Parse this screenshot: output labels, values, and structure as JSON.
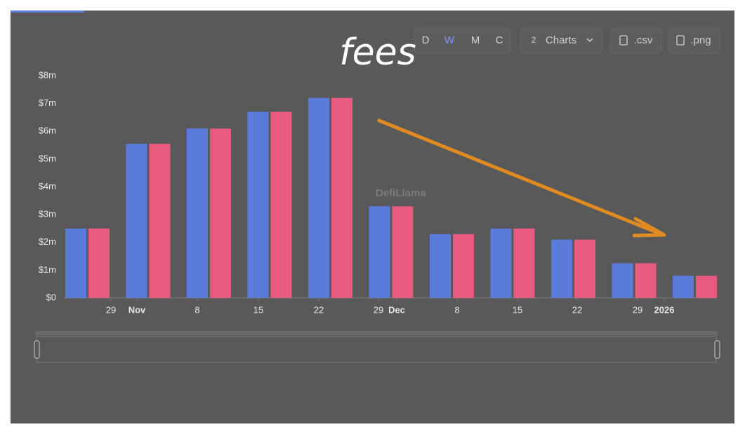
{
  "toolbar": {
    "intervals": [
      "D",
      "W",
      "M",
      "C"
    ],
    "charts_count": "2",
    "charts_label": "Charts",
    "csv": ".csv",
    "png": ".png"
  },
  "watermark": "DefiLlama",
  "chart_data": {
    "type": "bar",
    "annotation": "fees",
    "categories": [
      null,
      null,
      null,
      null,
      null,
      null,
      null,
      null,
      null,
      null,
      null
    ],
    "series": [
      {
        "color": "#5b7bda",
        "values": [
          2.5,
          5.55,
          6.1,
          6.7,
          7.2,
          3.3,
          2.3,
          2.5,
          2.1,
          1.25,
          0.8
        ]
      },
      {
        "color": "#e85a80",
        "values": [
          2.5,
          5.55,
          6.1,
          6.7,
          7.2,
          3.3,
          2.3,
          2.5,
          2.1,
          1.25,
          0.8
        ]
      }
    ],
    "xtick_labels": [
      "29",
      "Nov",
      "8",
      "15",
      "22",
      "29",
      "Dec",
      "8",
      "15",
      "22",
      "29",
      "2026"
    ],
    "ylim": [
      0,
      8
    ],
    "yticks": [
      {
        "value": 0,
        "label": "$0"
      },
      {
        "value": 1,
        "label": "$1m"
      },
      {
        "value": 2,
        "label": "$2m"
      },
      {
        "value": 3,
        "label": "$3m"
      },
      {
        "value": 4,
        "label": "$4m"
      },
      {
        "value": 5,
        "label": "$5m"
      },
      {
        "value": 6,
        "label": "$6m"
      },
      {
        "value": 7,
        "label": "$7m"
      },
      {
        "value": 8,
        "label": "$8m"
      }
    ],
    "grid": false
  }
}
